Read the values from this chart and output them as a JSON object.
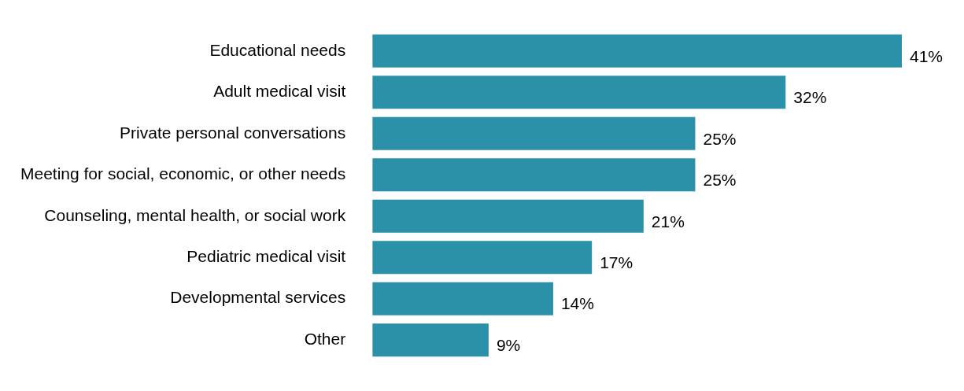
{
  "chart_data": {
    "type": "bar",
    "orientation": "horizontal",
    "categories": [
      "Educational needs",
      "Adult medical visit",
      "Private personal conversations",
      "Meeting for social, economic, or other needs",
      "Counseling, mental health, or social work",
      "Pediatric medical visit",
      "Developmental services",
      "Other"
    ],
    "values": [
      41,
      32,
      25,
      25,
      21,
      17,
      14,
      9
    ],
    "value_labels": [
      "41%",
      "32%",
      "25%",
      "25%",
      "21%",
      "17%",
      "14%",
      "9%"
    ],
    "color": "#2a91a8",
    "legend": false,
    "tick_labels": "y"
  }
}
